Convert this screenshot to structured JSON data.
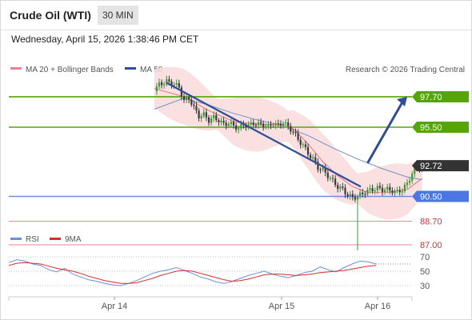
{
  "header": {
    "title": "Crude Oil (WTI)",
    "timeframe": "30 MIN",
    "datetime": "Wednesday, April 15, 2026 1:38:46 PM CET"
  },
  "legend": {
    "ma20_label": "MA 20 + Bollinger Bands",
    "ma50_label": "MA 50",
    "credit": "Research © 2026 Trading Central",
    "rsi_label": "RSI",
    "rsi_ma_label": "9MA"
  },
  "colors": {
    "resistance": "#55a50a",
    "pivot": "#6d8fdb",
    "support": "#e8848a",
    "trend": "#2e4f98",
    "ma20": "#e87c84",
    "ma50": "#6f8fc9",
    "bollinger": "#f9dada",
    "candle_up": "#3a9a3a",
    "candle_down": "#3a3a3a",
    "rsi": "#6b8fd8",
    "rsi_ma": "#dd2a2a",
    "current": "#333333"
  },
  "chart_data": [
    {
      "type": "candlestick",
      "title": "Crude Oil (WTI)",
      "timeframe": "30 MIN",
      "x_tick_labels": [
        "Apr 14",
        "Apr 15",
        "Apr 16"
      ],
      "y_range": [
        86.3,
        99.6
      ],
      "levels": [
        {
          "name": "resistance_2",
          "value": 97.7,
          "label": "97.70",
          "style": "resistance"
        },
        {
          "name": "resistance_1",
          "value": 95.5,
          "label": "95.50",
          "style": "resistance"
        },
        {
          "name": "current",
          "value": 92.72,
          "label": "92.72",
          "style": "current"
        },
        {
          "name": "pivot",
          "value": 90.5,
          "label": "90.50",
          "style": "pivot"
        },
        {
          "name": "support_1",
          "value": 88.7,
          "label": "88.70",
          "style": "support"
        },
        {
          "name": "support_2",
          "value": 87.0,
          "label": "87.00",
          "style": "support"
        }
      ],
      "trendline": {
        "start": [
          -77,
          98.7
        ],
        "end": [
          1.3,
          91.2
        ]
      },
      "projection": {
        "start": [
          4,
          92.9
        ],
        "end": [
          20,
          97.7
        ]
      },
      "price_path": [
        [
          -82,
          98.1
        ],
        [
          -80,
          98.6
        ],
        [
          -77,
          98.8
        ],
        [
          -74,
          98.6
        ],
        [
          -72,
          98.4
        ],
        [
          -70,
          97.4
        ],
        [
          -68,
          97.6
        ],
        [
          -66,
          96.9
        ],
        [
          -64,
          96.3
        ],
        [
          -62,
          96.4
        ],
        [
          -60,
          96.0
        ],
        [
          -58,
          96.2
        ],
        [
          -56,
          96.0
        ],
        [
          -54,
          95.7
        ],
        [
          -52,
          95.8
        ],
        [
          -50,
          95.6
        ],
        [
          -48,
          95.4
        ],
        [
          -46,
          95.7
        ],
        [
          -44,
          95.6
        ],
        [
          -42,
          95.8
        ],
        [
          -40,
          95.7
        ],
        [
          -38,
          95.7
        ],
        [
          -36,
          95.5
        ],
        [
          -34,
          95.8
        ],
        [
          -32,
          95.6
        ],
        [
          -30,
          95.9
        ],
        [
          -28,
          95.5
        ],
        [
          -26,
          95.2
        ],
        [
          -24,
          94.6
        ],
        [
          -22,
          94.2
        ],
        [
          -20,
          93.6
        ],
        [
          -18,
          93.2
        ],
        [
          -16,
          92.6
        ],
        [
          -14,
          92.4
        ],
        [
          -12,
          92.0
        ],
        [
          -10,
          91.6
        ],
        [
          -8,
          91.2
        ],
        [
          -6,
          91.0
        ],
        [
          -4,
          90.6
        ],
        [
          -2,
          90.4
        ],
        [
          0,
          90.5
        ],
        [
          2,
          90.7
        ],
        [
          4,
          90.9
        ],
        [
          6,
          91.0
        ],
        [
          8,
          91.1
        ],
        [
          10,
          91.0
        ],
        [
          12,
          91.0
        ],
        [
          14,
          90.9
        ],
        [
          16,
          90.8
        ],
        [
          18,
          91.0
        ],
        [
          20,
          91.4
        ],
        [
          22,
          92.2
        ],
        [
          24,
          92.6
        ],
        [
          26,
          92.72
        ]
      ],
      "ma20_path": [
        [
          -82,
          98.3
        ],
        [
          -70,
          97.7
        ],
        [
          -60,
          96.7
        ],
        [
          -50,
          95.9
        ],
        [
          -40,
          95.7
        ],
        [
          -30,
          95.7
        ],
        [
          -26,
          95.4
        ],
        [
          -20,
          94.3
        ],
        [
          -14,
          93.0
        ],
        [
          -8,
          92.0
        ],
        [
          -2,
          91.2
        ],
        [
          4,
          90.8
        ],
        [
          12,
          90.8
        ],
        [
          20,
          91.0
        ],
        [
          26,
          91.8
        ]
      ],
      "ma50_path": [
        [
          -82,
          96.8
        ],
        [
          -70,
          97.6
        ],
        [
          -60,
          97.1
        ],
        [
          -50,
          96.5
        ],
        [
          -40,
          96.0
        ],
        [
          -30,
          95.6
        ],
        [
          -20,
          94.9
        ],
        [
          -10,
          94.0
        ],
        [
          0,
          93.2
        ],
        [
          10,
          92.5
        ],
        [
          20,
          91.9
        ],
        [
          26,
          91.7
        ]
      ],
      "series": [
        {
          "name": "MA 20 + Bollinger Bands"
        },
        {
          "name": "MA 50"
        }
      ]
    },
    {
      "type": "line",
      "title": "RSI",
      "y_ticks": [
        70,
        50,
        30
      ],
      "y_range": [
        9,
        85
      ],
      "series": [
        {
          "name": "RSI",
          "values": [
            62,
            66,
            64,
            60,
            58,
            52,
            49,
            54,
            46,
            42,
            38,
            36,
            33,
            31,
            30,
            33,
            37,
            42,
            47,
            50,
            52,
            55,
            51,
            47,
            42,
            39,
            35,
            33,
            36,
            40,
            44,
            47,
            50,
            46,
            43,
            41,
            44,
            48,
            50,
            56,
            52,
            49,
            55,
            60,
            64,
            63,
            60
          ]
        },
        {
          "name": "9MA",
          "values": [
            58,
            61,
            62,
            61,
            60,
            57,
            54,
            52,
            50,
            47,
            43,
            40,
            37,
            35,
            33,
            33,
            34,
            37,
            40,
            44,
            47,
            50,
            51,
            50,
            47,
            44,
            41,
            38,
            36,
            37,
            39,
            42,
            45,
            46,
            46,
            45,
            44,
            45,
            46,
            48,
            49,
            50,
            51,
            53,
            55,
            57,
            58
          ]
        }
      ]
    }
  ]
}
